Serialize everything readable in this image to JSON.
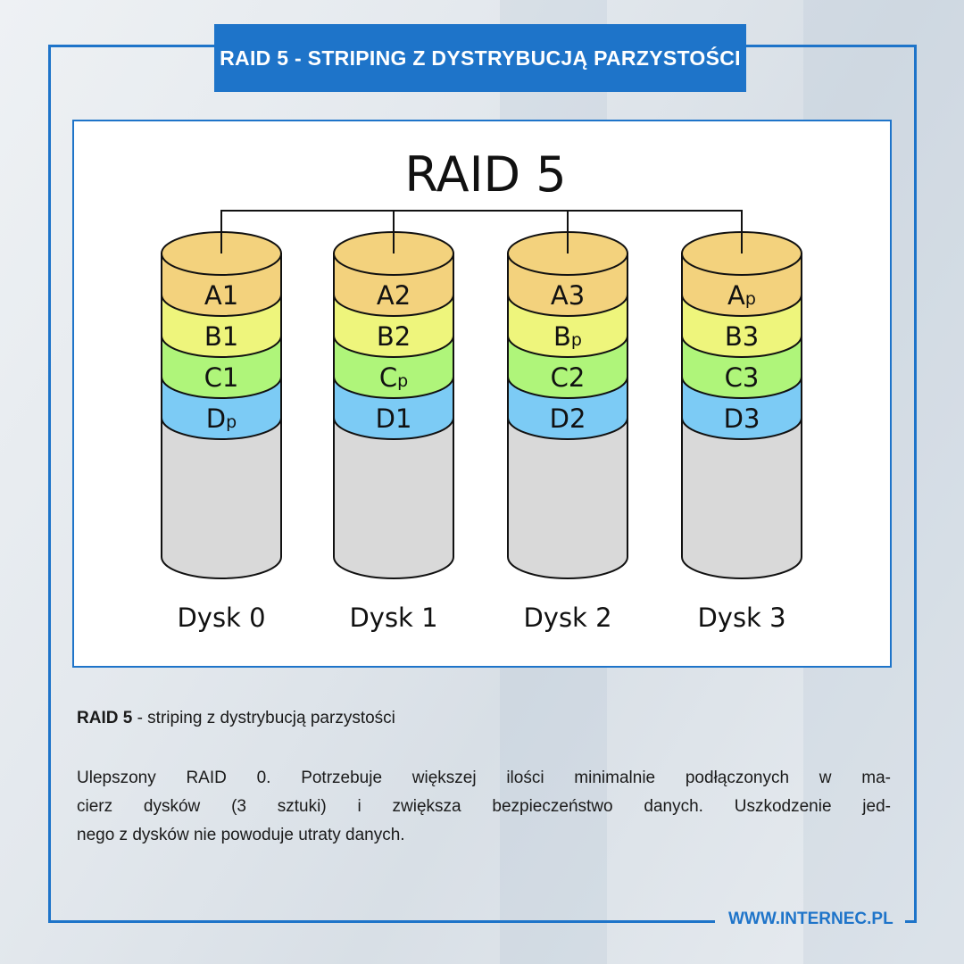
{
  "header": {
    "title": "RAID 5 - STRIPING Z DYSTRYBUCJĄ PARZYSTOŚCI"
  },
  "diagram": {
    "title": "RAID 5",
    "colors": {
      "A": "#f3d27d",
      "B": "#eef57c",
      "C": "#aff57a",
      "D": "#7ccbf5",
      "empty": "#d9d9d9"
    },
    "disks": [
      {
        "label": "Dysk 0",
        "blocks": [
          {
            "letter": "A",
            "sub": "1"
          },
          {
            "letter": "B",
            "sub": "1"
          },
          {
            "letter": "C",
            "sub": "1"
          },
          {
            "letter": "D",
            "sub": "p",
            "parity": true
          }
        ]
      },
      {
        "label": "Dysk 1",
        "blocks": [
          {
            "letter": "A",
            "sub": "2"
          },
          {
            "letter": "B",
            "sub": "2"
          },
          {
            "letter": "C",
            "sub": "p",
            "parity": true
          },
          {
            "letter": "D",
            "sub": "1"
          }
        ]
      },
      {
        "label": "Dysk 2",
        "blocks": [
          {
            "letter": "A",
            "sub": "3"
          },
          {
            "letter": "B",
            "sub": "p",
            "parity": true
          },
          {
            "letter": "C",
            "sub": "2"
          },
          {
            "letter": "D",
            "sub": "2"
          }
        ]
      },
      {
        "label": "Dysk 3",
        "blocks": [
          {
            "letter": "A",
            "sub": "p",
            "parity": true
          },
          {
            "letter": "B",
            "sub": "3"
          },
          {
            "letter": "C",
            "sub": "3"
          },
          {
            "letter": "D",
            "sub": "3"
          }
        ]
      }
    ]
  },
  "description": {
    "heading_bold": "RAID 5",
    "heading_rest": " - striping z dystrybucją parzystości",
    "lines": [
      "Ulepszony RAID 0. Potrzebuje większej ilości minimalnie podłączonych w ma-",
      "cierz dysków (3 sztuki) i zwiększa bezpieczeństwo danych. Uszkodzenie jed-",
      "nego z dysków nie powoduje utraty danych."
    ]
  },
  "footer": {
    "url": "WWW.INTERNEC.PL"
  }
}
